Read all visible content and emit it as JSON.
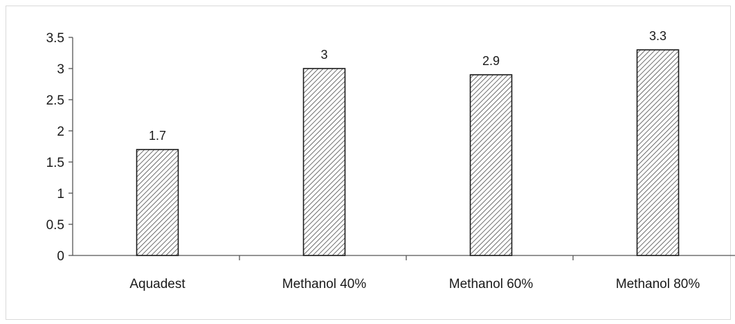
{
  "chart_data": {
    "type": "bar",
    "title": "",
    "xlabel": "",
    "ylabel": "",
    "categories": [
      "Aquadest",
      "Methanol 40%",
      "Methanol 60%",
      "Methanol 80%"
    ],
    "values": [
      1.7,
      3,
      2.9,
      3.3
    ],
    "data_labels": [
      "1.7",
      "3",
      "2.9",
      "3.3"
    ],
    "ylim": [
      0,
      3.5
    ],
    "y_ticks": [
      "0",
      "0.5",
      "1",
      "1.5",
      "2",
      "2.5",
      "3",
      "3.5"
    ],
    "grid": false,
    "legend": "none",
    "bar_fill": "diagonal hatch",
    "colors": {
      "bar_stroke": "#1a1a1a",
      "hatch": "#4a4a4a",
      "axis": "#555555"
    }
  }
}
